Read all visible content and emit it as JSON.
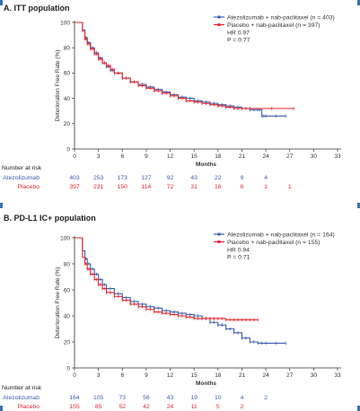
{
  "colors": {
    "atezolizumab": "#3b5fb0",
    "placebo": "#e4262c",
    "accent": "#3a6fb5"
  },
  "chart_data": [
    {
      "type": "line",
      "panel_title": "A. ITT population",
      "xlabel": "Months",
      "ylabel": "Deterioration Free Rate (%)",
      "xlim": [
        0,
        33
      ],
      "ylim": [
        0,
        100
      ],
      "xticks": [
        "0",
        "3",
        "6",
        "9",
        "12",
        "15",
        "18",
        "21",
        "24",
        "27",
        "30",
        "33"
      ],
      "yticks": [
        "0",
        "20",
        "40",
        "60",
        "80",
        "100"
      ],
      "grid": false,
      "legend_position": "top-right",
      "legend": [
        "Atezolizumab + nab-paclitaxel (n = 403)",
        "Placebo + nab-paclitaxel (n = 397)"
      ],
      "stats": [
        "HR 0.97",
        "P = 0.77"
      ],
      "series": [
        {
          "name": "Atezolizumab + nab-paclitaxel (n = 403)",
          "color_key": "atezolizumab",
          "x": [
            0,
            0.8,
            1.0,
            1.3,
            1.6,
            2.0,
            2.5,
            3.0,
            3.5,
            4.0,
            4.5,
            5.0,
            6.0,
            7.0,
            8.0,
            9.0,
            10.0,
            11.0,
            12.0,
            13.0,
            14.0,
            15.0,
            16.0,
            17.0,
            18.0,
            19.0,
            20.0,
            21.0,
            22.0,
            23.0,
            23.5,
            24.0,
            26.5
          ],
          "y": [
            100,
            100,
            94,
            88,
            84,
            80,
            76,
            72,
            68,
            65,
            62,
            60,
            56,
            53,
            51,
            49,
            47,
            45,
            43,
            41,
            40,
            38,
            37,
            36,
            35,
            34,
            33,
            32,
            31,
            31,
            26,
            26,
            26
          ]
        },
        {
          "name": "Placebo + nab-paclitaxel (n = 397)",
          "color_key": "placebo",
          "x": [
            0,
            0.8,
            1.0,
            1.3,
            1.6,
            2.0,
            2.5,
            3.0,
            3.5,
            4.0,
            4.5,
            5.0,
            6.0,
            7.0,
            8.0,
            9.0,
            10.0,
            11.0,
            12.0,
            13.0,
            14.0,
            15.0,
            16.0,
            17.0,
            18.0,
            19.0,
            20.0,
            21.0,
            22.0,
            27.5
          ],
          "y": [
            100,
            100,
            93,
            87,
            83,
            79,
            75,
            71,
            68,
            66,
            63,
            60,
            56,
            53,
            50,
            48,
            46,
            44,
            42,
            40,
            38,
            37,
            36,
            35,
            34,
            33,
            32,
            32,
            32,
            32
          ]
        }
      ],
      "risk_table": {
        "title": "Number at risk",
        "rows": [
          {
            "label": "Atezolizumab",
            "color_key": "atezolizumab",
            "months": [
              0,
              3,
              6,
              9,
              12,
              15,
              18,
              21,
              24
            ],
            "values": [
              "403",
              "253",
              "173",
              "127",
              "92",
              "43",
              "22",
              "9",
              "4"
            ]
          },
          {
            "label": "Placebo",
            "color_key": "placebo",
            "months": [
              0,
              3,
              6,
              9,
              12,
              15,
              18,
              21,
              24,
              27
            ],
            "values": [
              "397",
              "231",
              "150",
              "114",
              "72",
              "31",
              "16",
              "6",
              "1",
              "1"
            ]
          }
        ]
      }
    },
    {
      "type": "line",
      "panel_title": "B. PD-L1 IC+ population",
      "xlabel": "Months",
      "ylabel": "Deterioration Free Rate (%)",
      "xlim": [
        0,
        33
      ],
      "ylim": [
        0,
        100
      ],
      "xticks": [
        "0",
        "3",
        "6",
        "9",
        "12",
        "15",
        "18",
        "21",
        "24",
        "27",
        "30",
        "33"
      ],
      "yticks": [
        "0",
        "20",
        "40",
        "60",
        "80",
        "100"
      ],
      "grid": false,
      "legend_position": "top-right",
      "legend": [
        "Atezolizumab + nab-paclitaxel (n = 164)",
        "Placebo + nab-paclitaxel (n = 155)"
      ],
      "stats": [
        "HR 0.94",
        "P = 0.71"
      ],
      "series": [
        {
          "name": "Atezolizumab + nab-paclitaxel (n = 164)",
          "color_key": "atezolizumab",
          "x": [
            0,
            0.8,
            1.0,
            1.3,
            1.6,
            2.0,
            2.5,
            3.0,
            3.5,
            4.0,
            5.0,
            6.0,
            7.0,
            8.0,
            9.0,
            10.0,
            11.0,
            12.0,
            13.0,
            14.0,
            15.0,
            16.0,
            17.0,
            18.0,
            19.0,
            20.0,
            21.0,
            22.0,
            23.0,
            24.0,
            26.5
          ],
          "y": [
            100,
            100,
            90,
            84,
            80,
            76,
            72,
            68,
            64,
            61,
            57,
            54,
            51,
            49,
            47,
            46,
            44,
            43,
            42,
            41,
            40,
            38,
            35,
            33,
            30,
            27,
            23,
            20,
            19,
            19,
            19
          ]
        },
        {
          "name": "Placebo + nab-paclitaxel (n = 155)",
          "color_key": "placebo",
          "x": [
            0,
            0.8,
            1.0,
            1.3,
            1.6,
            2.0,
            2.5,
            3.0,
            3.5,
            4.0,
            5.0,
            6.0,
            7.0,
            8.0,
            9.0,
            10.0,
            11.0,
            12.0,
            13.0,
            14.0,
            15.0,
            16.0,
            17.0,
            18.0,
            19.0,
            20.0,
            21.0,
            22.0,
            23.0
          ],
          "y": [
            100,
            100,
            85,
            80,
            76,
            72,
            68,
            64,
            61,
            58,
            55,
            52,
            49,
            47,
            45,
            43,
            42,
            41,
            40,
            39,
            38,
            38,
            38,
            38,
            37,
            37,
            37,
            37,
            37
          ]
        }
      ],
      "risk_table": {
        "title": "Number at risk",
        "rows": [
          {
            "label": "Atezolizumab",
            "color_key": "atezolizumab",
            "months": [
              0,
              3,
              6,
              9,
              12,
              15,
              18,
              21,
              24
            ],
            "values": [
              "164",
              "105",
              "73",
              "56",
              "43",
              "19",
              "10",
              "4",
              "2"
            ]
          },
          {
            "label": "Placebo",
            "color_key": "placebo",
            "months": [
              0,
              3,
              6,
              9,
              12,
              15,
              18,
              21
            ],
            "values": [
              "155",
              "85",
              "52",
              "42",
              "24",
              "11",
              "5",
              "2"
            ]
          }
        ]
      }
    }
  ]
}
